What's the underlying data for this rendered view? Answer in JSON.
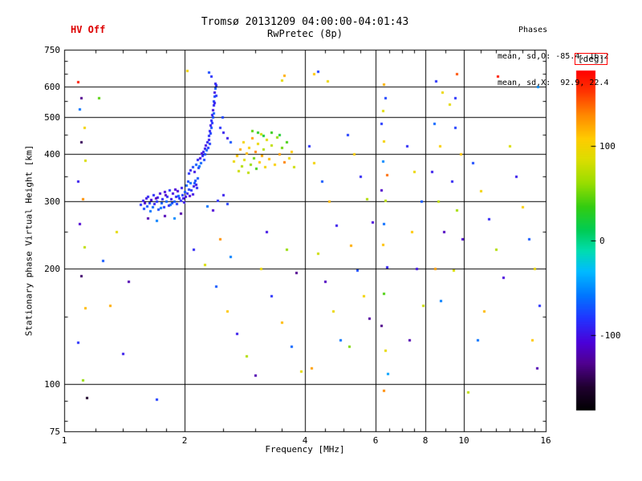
{
  "header": {
    "hv_off": "HV Off",
    "title": "Tromsø 20131209 04:00:00-04:01:43",
    "subtitle": "RwPretec (8p)",
    "phases_label": "Phases",
    "phases_line_o": "mean, sd,O: -85.4, 16.2",
    "phases_line_x": "mean, sd,X:  92.9, 22.4"
  },
  "chart_data": {
    "type": "scatter",
    "title": "Tromsø 20131209 04:00:00-04:01:43",
    "subtitle": "RwPretec (8p)",
    "xlabel": "Frequency [MHz]",
    "ylabel": "Stationary phase Virtual Height [km]",
    "x_scale": "log",
    "y_scale": "log",
    "xlim": [
      1,
      16
    ],
    "ylim": [
      75,
      750
    ],
    "x_ticks": [
      1,
      2,
      4,
      6,
      8,
      10,
      16
    ],
    "y_ticks": [
      75,
      100,
      200,
      300,
      400,
      500,
      600,
      750
    ],
    "x_minor": [
      1.2,
      1.4,
      1.6,
      1.8,
      2.5,
      3,
      3.5,
      4.5,
      5,
      5.5,
      6.5,
      7,
      7.5,
      9,
      11,
      12,
      13,
      14,
      15
    ],
    "y_minor": [
      80,
      90,
      150,
      250,
      350,
      450,
      550,
      650,
      700
    ],
    "grid": true,
    "legend_position": "right-colorbar",
    "mean_sd_O": [
      -85.4,
      16.2
    ],
    "mean_sd_X": [
      92.9,
      22.4
    ],
    "colorbar": {
      "label": "[deg]",
      "range": [
        -180,
        180
      ],
      "ticks": [
        100,
        0,
        -100
      ],
      "stops": [
        [
          0.0,
          "#000000"
        ],
        [
          0.07,
          "#200030"
        ],
        [
          0.14,
          "#500090"
        ],
        [
          0.2,
          "#4b00d8"
        ],
        [
          0.27,
          "#2233ff"
        ],
        [
          0.34,
          "#0077ff"
        ],
        [
          0.41,
          "#00bbff"
        ],
        [
          0.47,
          "#00ddb0"
        ],
        [
          0.53,
          "#00cc55"
        ],
        [
          0.6,
          "#33cc11"
        ],
        [
          0.67,
          "#99dd00"
        ],
        [
          0.74,
          "#dddd00"
        ],
        [
          0.8,
          "#ffcc00"
        ],
        [
          0.87,
          "#ff8800"
        ],
        [
          0.94,
          "#ff3300"
        ],
        [
          1.0,
          "#ff0000"
        ]
      ]
    },
    "points": [
      [
        1.55,
        295,
        -85
      ],
      [
        1.57,
        302,
        -95
      ],
      [
        1.58,
        288,
        -75
      ],
      [
        1.6,
        306,
        -100
      ],
      [
        1.61,
        292,
        -70
      ],
      [
        1.62,
        310,
        -90
      ],
      [
        1.63,
        298,
        -80
      ],
      [
        1.65,
        303,
        -105
      ],
      [
        1.66,
        290,
        -65
      ],
      [
        1.67,
        312,
        -88
      ],
      [
        1.68,
        296,
        -92
      ],
      [
        1.7,
        301,
        -84
      ],
      [
        1.71,
        308,
        -96
      ],
      [
        1.72,
        286,
        -74
      ],
      [
        1.73,
        315,
        -102
      ],
      [
        1.75,
        297,
        -68
      ],
      [
        1.76,
        305,
        -89
      ],
      [
        1.77,
        291,
        -81
      ],
      [
        1.78,
        318,
        -104
      ],
      [
        1.8,
        300,
        -66
      ],
      [
        1.81,
        310,
        -87
      ],
      [
        1.82,
        294,
        -93
      ],
      [
        1.83,
        322,
        -83
      ],
      [
        1.85,
        305,
        -97
      ],
      [
        1.86,
        298,
        -73
      ],
      [
        1.87,
        316,
        -101
      ],
      [
        1.88,
        301,
        -69
      ],
      [
        1.9,
        309,
        -91
      ],
      [
        1.91,
        296,
        -79
      ],
      [
        1.92,
        320,
        -106
      ],
      [
        1.93,
        311,
        -64
      ],
      [
        1.95,
        302,
        -86
      ],
      [
        1.96,
        326,
        -94
      ],
      [
        1.97,
        313,
        -82
      ],
      [
        1.98,
        306,
        -98
      ],
      [
        2.0,
        318,
        -72
      ],
      [
        2.01,
        309,
        -103
      ],
      [
        2.02,
        331,
        -67
      ],
      [
        2.03,
        316,
        -90
      ],
      [
        2.05,
        323,
        -78
      ],
      [
        2.06,
        311,
        -107
      ],
      [
        2.07,
        336,
        -63
      ],
      [
        2.08,
        321,
        -85
      ],
      [
        2.1,
        329,
        -95
      ],
      [
        2.12,
        341,
        -75
      ],
      [
        2.13,
        333,
        -100
      ],
      [
        2.15,
        346,
        -70
      ],
      [
        1.59,
        297,
        -110
      ],
      [
        1.64,
        284,
        -60
      ],
      [
        1.69,
        307,
        -115
      ],
      [
        1.74,
        289,
        -58
      ],
      [
        1.79,
        313,
        -112
      ],
      [
        1.84,
        295,
        -62
      ],
      [
        1.89,
        324,
        -108
      ],
      [
        1.94,
        307,
        -84
      ],
      [
        1.99,
        299,
        -96
      ],
      [
        2.04,
        340,
        -76
      ],
      [
        2.09,
        314,
        -99
      ],
      [
        2.11,
        336,
        -71
      ],
      [
        2.14,
        327,
        -89
      ],
      [
        2.05,
        356,
        -84
      ],
      [
        2.07,
        363,
        -94
      ],
      [
        2.09,
        371,
        -76
      ],
      [
        2.11,
        359,
        -99
      ],
      [
        2.13,
        376,
        -69
      ],
      [
        2.15,
        386,
        -89
      ],
      [
        2.16,
        368,
        -81
      ],
      [
        2.18,
        391,
        -103
      ],
      [
        2.19,
        379,
        -66
      ],
      [
        2.21,
        396,
        -87
      ],
      [
        2.22,
        406,
        -93
      ],
      [
        2.23,
        386,
        -77
      ],
      [
        2.24,
        413,
        -97
      ],
      [
        2.25,
        399,
        -73
      ],
      [
        2.26,
        421,
        -101
      ],
      [
        2.27,
        409,
        -67
      ],
      [
        2.28,
        429,
        -91
      ],
      [
        2.29,
        416,
        -83
      ],
      [
        2.3,
        436,
        -95
      ],
      [
        2.31,
        426,
        -79
      ],
      [
        2.2,
        402,
        -105
      ],
      [
        2.17,
        372,
        -61
      ],
      [
        2.3,
        446,
        -86
      ],
      [
        2.31,
        461,
        -92
      ],
      [
        2.32,
        453,
        -78
      ],
      [
        2.32,
        476,
        -98
      ],
      [
        2.33,
        469,
        -72
      ],
      [
        2.33,
        491,
        -88
      ],
      [
        2.34,
        483,
        -82
      ],
      [
        2.34,
        506,
        -96
      ],
      [
        2.35,
        499,
        -74
      ],
      [
        2.35,
        521,
        -102
      ],
      [
        2.36,
        513,
        -68
      ],
      [
        2.36,
        536,
        -90
      ],
      [
        2.36,
        551,
        -80
      ],
      [
        2.37,
        546,
        -94
      ],
      [
        2.37,
        566,
        -76
      ],
      [
        2.37,
        581,
        -100
      ],
      [
        2.38,
        596,
        -70
      ],
      [
        2.38,
        613,
        -92
      ],
      [
        2.39,
        570,
        -84
      ],
      [
        2.39,
        605,
        -88
      ],
      [
        1.62,
        272,
        -120
      ],
      [
        1.7,
        268,
        -55
      ],
      [
        1.78,
        276,
        -118
      ],
      [
        1.88,
        271,
        -52
      ],
      [
        1.95,
        279,
        -122
      ],
      [
        2.42,
        302,
        -86
      ],
      [
        2.5,
        312,
        -94
      ],
      [
        2.56,
        296,
        -80
      ],
      [
        2.35,
        285,
        -108
      ],
      [
        2.28,
        292,
        -60
      ],
      [
        2.45,
        470,
        -85
      ],
      [
        2.5,
        455,
        -93
      ],
      [
        2.48,
        500,
        -77
      ],
      [
        2.55,
        440,
        -97
      ],
      [
        2.6,
        430,
        -71
      ],
      [
        2.65,
        382,
        95
      ],
      [
        2.7,
        396,
        110
      ],
      [
        2.72,
        362,
        80
      ],
      [
        2.75,
        411,
        120
      ],
      [
        2.78,
        372,
        70
      ],
      [
        2.8,
        431,
        100
      ],
      [
        2.82,
        386,
        88
      ],
      [
        2.85,
        401,
        115
      ],
      [
        2.88,
        357,
        75
      ],
      [
        2.9,
        416,
        105
      ],
      [
        2.92,
        376,
        60
      ],
      [
        2.95,
        441,
        125
      ],
      [
        2.98,
        391,
        50
      ],
      [
        3.0,
        406,
        135
      ],
      [
        3.02,
        366,
        40
      ],
      [
        3.05,
        426,
        95
      ],
      [
        3.08,
        381,
        110
      ],
      [
        3.1,
        451,
        80
      ],
      [
        3.12,
        396,
        120
      ],
      [
        3.15,
        411,
        70
      ],
      [
        3.18,
        371,
        100
      ],
      [
        3.2,
        436,
        88
      ],
      [
        3.25,
        389,
        115
      ],
      [
        3.3,
        421,
        75
      ],
      [
        3.35,
        376,
        105
      ],
      [
        3.4,
        443,
        60
      ],
      [
        3.45,
        399,
        125
      ],
      [
        3.5,
        416,
        50
      ],
      [
        3.55,
        381,
        135
      ],
      [
        3.6,
        429,
        40
      ],
      [
        3.65,
        391,
        95
      ],
      [
        3.7,
        406,
        110
      ],
      [
        3.75,
        371,
        80
      ],
      [
        3.05,
        455,
        30
      ],
      [
        3.15,
        448,
        20
      ],
      [
        2.95,
        460,
        45
      ],
      [
        3.3,
        455,
        35
      ],
      [
        3.45,
        450,
        25
      ],
      [
        2.03,
        662,
        100
      ],
      [
        3.55,
        642,
        120
      ],
      [
        3.5,
        625,
        90
      ],
      [
        4.3,
        658,
        -80
      ],
      [
        4.55,
        622,
        95
      ],
      [
        2.33,
        640,
        -85
      ],
      [
        2.3,
        655,
        -75
      ],
      [
        4.2,
        650,
        110
      ],
      [
        12.1,
        640,
        170
      ],
      [
        9.6,
        648,
        150
      ],
      [
        1.08,
        618,
        170
      ],
      [
        1.1,
        560,
        -130
      ],
      [
        1.09,
        525,
        -60
      ],
      [
        1.12,
        470,
        100
      ],
      [
        1.1,
        430,
        -145
      ],
      [
        1.13,
        385,
        85
      ],
      [
        1.08,
        340,
        -95
      ],
      [
        1.11,
        305,
        130
      ],
      [
        1.09,
        262,
        -110
      ],
      [
        1.12,
        228,
        75
      ],
      [
        1.1,
        192,
        -140
      ],
      [
        1.13,
        158,
        115
      ],
      [
        1.08,
        128,
        -85
      ],
      [
        1.11,
        102,
        60
      ],
      [
        1.14,
        92,
        -160
      ],
      [
        1.25,
        210,
        -70
      ],
      [
        1.3,
        160,
        120
      ],
      [
        1.4,
        120,
        -95
      ],
      [
        1.35,
        250,
        90
      ],
      [
        1.45,
        185,
        -120
      ],
      [
        1.22,
        560,
        45
      ],
      [
        2.1,
        225,
        -90
      ],
      [
        2.25,
        205,
        85
      ],
      [
        2.4,
        180,
        -70
      ],
      [
        2.55,
        155,
        110
      ],
      [
        2.7,
        135,
        -95
      ],
      [
        2.85,
        118,
        70
      ],
      [
        3.0,
        105,
        -120
      ],
      [
        2.45,
        240,
        130
      ],
      [
        2.6,
        215,
        -55
      ],
      [
        1.7,
        91,
        -80
      ],
      [
        3.1,
        200,
        95
      ],
      [
        3.3,
        170,
        -85
      ],
      [
        3.5,
        145,
        115
      ],
      [
        3.7,
        125,
        -65
      ],
      [
        3.9,
        108,
        90
      ],
      [
        3.2,
        250,
        -100
      ],
      [
        3.6,
        225,
        60
      ],
      [
        3.8,
        195,
        -130
      ],
      [
        4.1,
        420,
        -85
      ],
      [
        4.2,
        380,
        100
      ],
      [
        4.4,
        340,
        -70
      ],
      [
        4.6,
        300,
        115
      ],
      [
        4.8,
        260,
        -95
      ],
      [
        4.3,
        220,
        80
      ],
      [
        4.5,
        185,
        -115
      ],
      [
        4.7,
        155,
        95
      ],
      [
        4.9,
        130,
        -60
      ],
      [
        4.15,
        110,
        125
      ],
      [
        5.1,
        450,
        -80
      ],
      [
        5.3,
        400,
        105
      ],
      [
        5.5,
        350,
        -90
      ],
      [
        5.7,
        305,
        70
      ],
      [
        5.9,
        265,
        -105
      ],
      [
        5.2,
        230,
        120
      ],
      [
        5.4,
        198,
        -75
      ],
      [
        5.6,
        170,
        100
      ],
      [
        5.8,
        148,
        -125
      ],
      [
        5.15,
        125,
        55
      ],
      [
        6.2,
        480,
        -82
      ],
      [
        6.3,
        432,
        102
      ],
      [
        6.25,
        382,
        -52
      ],
      [
        6.4,
        352,
        142
      ],
      [
        6.2,
        322,
        -112
      ],
      [
        6.35,
        302,
        72
      ],
      [
        6.3,
        262,
        -62
      ],
      [
        6.25,
        232,
        112
      ],
      [
        6.4,
        202,
        -92
      ],
      [
        6.3,
        172,
        42
      ],
      [
        6.2,
        142,
        -132
      ],
      [
        6.35,
        122,
        92
      ],
      [
        6.45,
        106,
        -42
      ],
      [
        6.3,
        96,
        132
      ],
      [
        6.25,
        520,
        88
      ],
      [
        6.35,
        560,
        -78
      ],
      [
        6.3,
        610,
        118
      ],
      [
        7.2,
        420,
        -88
      ],
      [
        7.5,
        360,
        95
      ],
      [
        7.8,
        300,
        -70
      ],
      [
        7.4,
        250,
        110
      ],
      [
        7.6,
        200,
        -100
      ],
      [
        7.9,
        160,
        80
      ],
      [
        7.3,
        130,
        -120
      ],
      [
        8.5,
        620,
        -85
      ],
      [
        8.8,
        580,
        95
      ],
      [
        8.4,
        480,
        -65
      ],
      [
        8.7,
        420,
        105
      ],
      [
        8.3,
        360,
        -95
      ],
      [
        8.6,
        300,
        75
      ],
      [
        8.9,
        250,
        -115
      ],
      [
        8.45,
        200,
        125
      ],
      [
        8.75,
        165,
        -55
      ],
      [
        9.5,
        560,
        -85
      ],
      [
        9.2,
        540,
        90
      ],
      [
        9.5,
        470,
        -80
      ],
      [
        9.8,
        400,
        110
      ],
      [
        9.3,
        340,
        -90
      ],
      [
        9.6,
        285,
        65
      ],
      [
        9.9,
        240,
        -110
      ],
      [
        9.4,
        198,
        85
      ],
      [
        10.5,
        380,
        -75
      ],
      [
        11,
        320,
        100
      ],
      [
        11.5,
        270,
        -90
      ],
      [
        12,
        225,
        70
      ],
      [
        12.5,
        190,
        -105
      ],
      [
        11.2,
        155,
        115
      ],
      [
        10.8,
        130,
        -60
      ],
      [
        13,
        420,
        85
      ],
      [
        13.5,
        350,
        -95
      ],
      [
        14,
        290,
        105
      ],
      [
        14.5,
        240,
        -70
      ],
      [
        15,
        200,
        95
      ],
      [
        15.3,
        600,
        -50
      ],
      [
        15.4,
        160,
        -85
      ],
      [
        14.8,
        130,
        110
      ],
      [
        15.2,
        110,
        -120
      ],
      [
        10.2,
        95,
        75
      ]
    ]
  },
  "colors": {
    "annotation_red": "#dd0000",
    "axis_black": "#000000",
    "background": "#ffffff"
  }
}
